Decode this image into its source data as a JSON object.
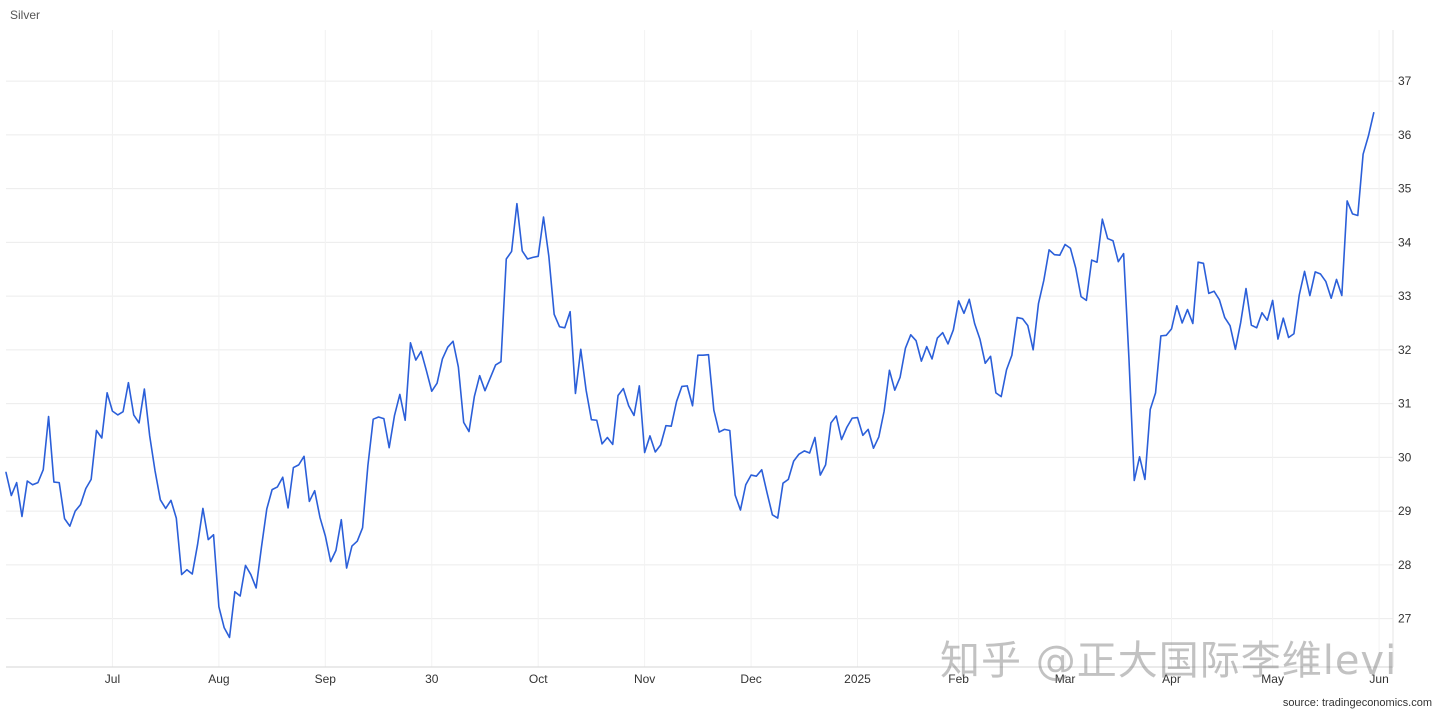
{
  "chart_data": {
    "type": "line",
    "title": "Silver",
    "source": "source: tradingeconomics.com",
    "xlabel": "",
    "ylabel": "",
    "ylim": [
      26.1,
      37.95
    ],
    "y_ticks": [
      27,
      28,
      29,
      30,
      31,
      32,
      33,
      34,
      35,
      36,
      37
    ],
    "x_tick_labels": [
      "Jul",
      "Aug",
      "Sep",
      "30",
      "Oct",
      "Nov",
      "Dec",
      "2025",
      "Feb",
      "Mar",
      "Apr",
      "May",
      "Jun"
    ],
    "x_tick_index": [
      20,
      40,
      60,
      80,
      100,
      120,
      140,
      160,
      179,
      199,
      219,
      238,
      258
    ],
    "grid": true,
    "line_color": "#2b5fd9",
    "series": [
      {
        "name": "",
        "values": [
          29.72,
          29.29,
          29.53,
          28.9,
          29.56,
          29.49,
          29.53,
          29.77,
          30.76,
          29.54,
          29.53,
          28.86,
          28.72,
          29.0,
          29.12,
          29.42,
          29.59,
          30.5,
          30.36,
          31.2,
          30.86,
          30.79,
          30.85,
          31.39,
          30.79,
          30.64,
          31.27,
          30.4,
          29.75,
          29.21,
          29.05,
          29.2,
          28.87,
          27.82,
          27.91,
          27.83,
          28.38,
          29.05,
          28.47,
          28.56,
          27.22,
          26.83,
          26.65,
          27.5,
          27.42,
          27.99,
          27.82,
          27.57,
          28.33,
          29.04,
          29.4,
          29.45,
          29.63,
          29.06,
          29.81,
          29.86,
          30.02,
          29.18,
          29.38,
          28.88,
          28.54,
          28.06,
          28.27,
          28.84,
          27.94,
          28.35,
          28.44,
          28.69,
          29.85,
          30.71,
          30.75,
          30.72,
          30.18,
          30.78,
          31.17,
          30.69,
          32.13,
          31.81,
          31.97,
          31.61,
          31.23,
          31.38,
          31.83,
          32.05,
          32.16,
          31.68,
          30.65,
          30.48,
          31.13,
          31.52,
          31.24,
          31.48,
          31.72,
          31.78,
          33.69,
          33.83,
          34.72,
          33.84,
          33.69,
          33.72,
          33.74,
          34.47,
          33.74,
          32.66,
          32.43,
          32.41,
          32.71,
          31.19,
          32.01,
          31.25,
          30.7,
          30.69,
          30.25,
          30.37,
          30.24,
          31.15,
          31.28,
          30.96,
          30.78,
          31.33,
          30.09,
          30.4,
          30.1,
          30.23,
          30.59,
          30.58,
          31.04,
          31.32,
          31.33,
          30.96,
          31.9,
          31.9,
          31.91,
          30.88,
          30.47,
          30.52,
          30.5,
          29.3,
          29.02,
          29.49,
          29.67,
          29.65,
          29.77,
          29.34,
          28.93,
          28.87,
          29.52,
          29.59,
          29.93,
          30.06,
          30.12,
          30.08,
          30.37,
          29.67,
          29.86,
          30.64,
          30.77,
          30.33,
          30.56,
          30.73,
          30.74,
          30.41,
          30.52,
          30.17,
          30.38,
          30.86,
          31.62,
          31.25,
          31.49,
          32.03,
          32.28,
          32.17,
          31.79,
          32.06,
          31.83,
          32.22,
          32.32,
          32.11,
          32.37,
          32.91,
          32.68,
          32.94,
          32.49,
          32.2,
          31.75,
          31.88,
          31.2,
          31.13,
          31.63,
          31.9,
          32.6,
          32.58,
          32.45,
          32.0,
          32.86,
          33.29,
          33.86,
          33.77,
          33.76,
          33.96,
          33.89,
          33.52,
          32.99,
          32.92,
          33.67,
          33.63,
          34.43,
          34.07,
          34.03,
          33.64,
          33.79,
          31.84,
          29.57,
          30.01,
          29.59,
          30.89,
          31.2,
          32.26,
          32.27,
          32.39,
          32.82,
          32.5,
          32.75,
          32.49,
          33.63,
          33.61,
          33.05,
          33.09,
          32.93,
          32.6,
          32.45,
          32.01,
          32.51,
          33.14,
          32.46,
          32.41,
          32.69,
          32.55,
          32.92,
          32.2,
          32.59,
          32.23,
          32.3,
          33.02,
          33.46,
          33.01,
          33.45,
          33.41,
          33.27,
          32.96,
          33.31,
          33.01,
          34.77,
          34.53,
          34.5,
          35.64,
          35.98,
          36.41
        ]
      }
    ]
  },
  "watermark": "知乎 @正大国际李维levi"
}
